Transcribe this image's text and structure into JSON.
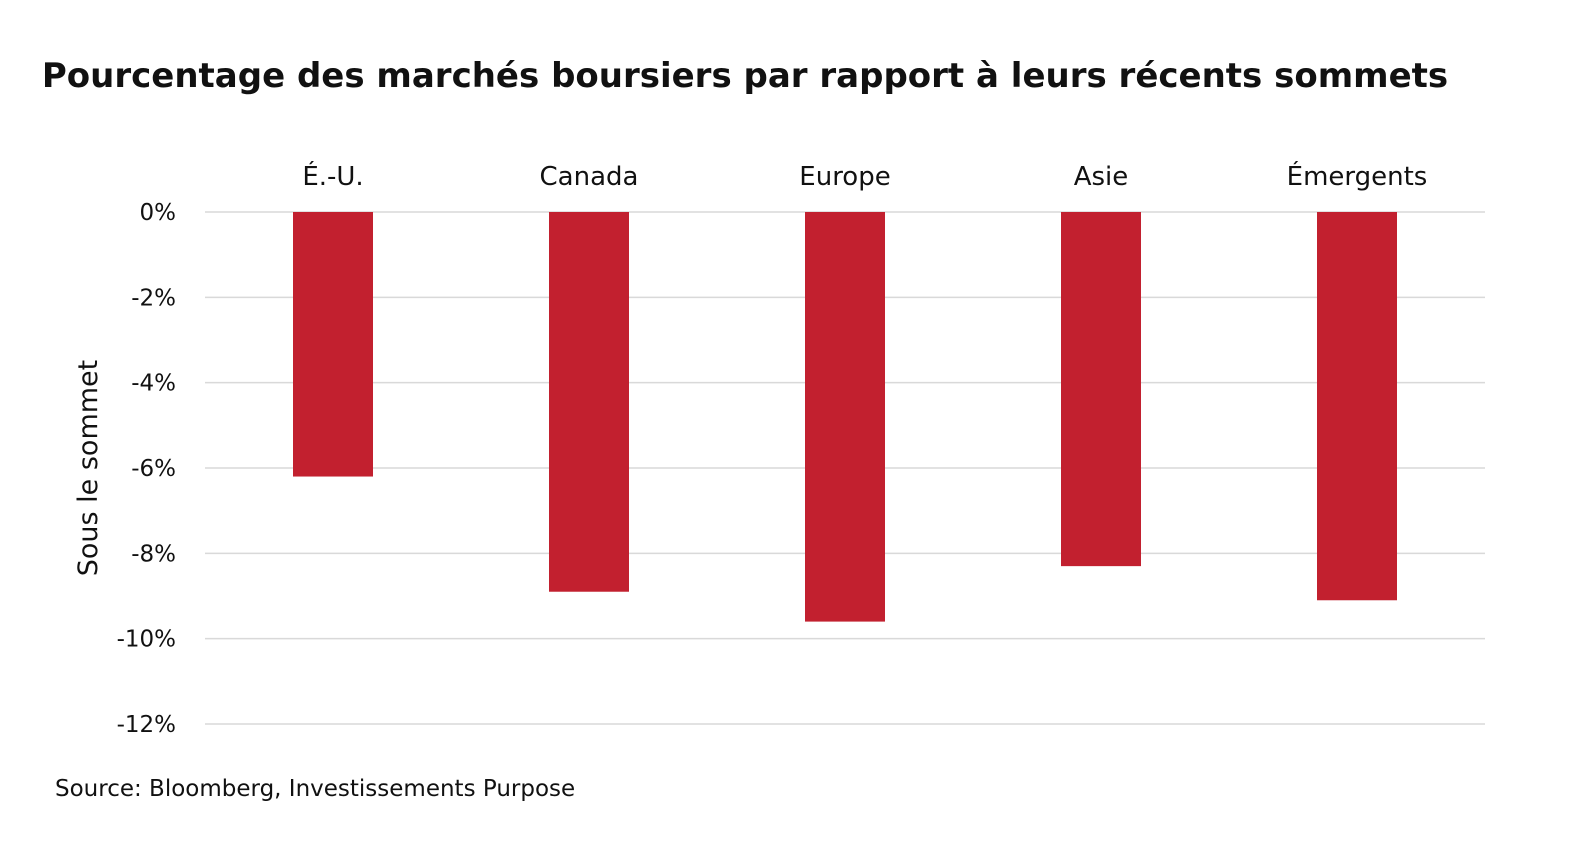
{
  "chart_data": {
    "type": "bar",
    "title": "Pourcentage des marchés boursiers par rapport à leurs récents sommets",
    "xlabel": "",
    "ylabel": "Sous le sommet",
    "categories": [
      "É.-U.",
      "Canada",
      "Europe",
      "Asie",
      "Émergents"
    ],
    "values": [
      -6.2,
      -8.9,
      -9.6,
      -8.3,
      -9.1
    ],
    "ylim": [
      -12,
      0
    ],
    "yticks": [
      0,
      -2,
      -4,
      -6,
      -8,
      -10,
      -12
    ],
    "ytick_labels": [
      "0%",
      "-2%",
      "-4%",
      "-6%",
      "-8%",
      "-10%",
      "-12%"
    ],
    "category_axis_position": "top",
    "grid": true,
    "bar_color": "#C2202F",
    "grid_color": "#D9D9D9"
  },
  "source": "Source: Bloomberg, Investissements Purpose"
}
